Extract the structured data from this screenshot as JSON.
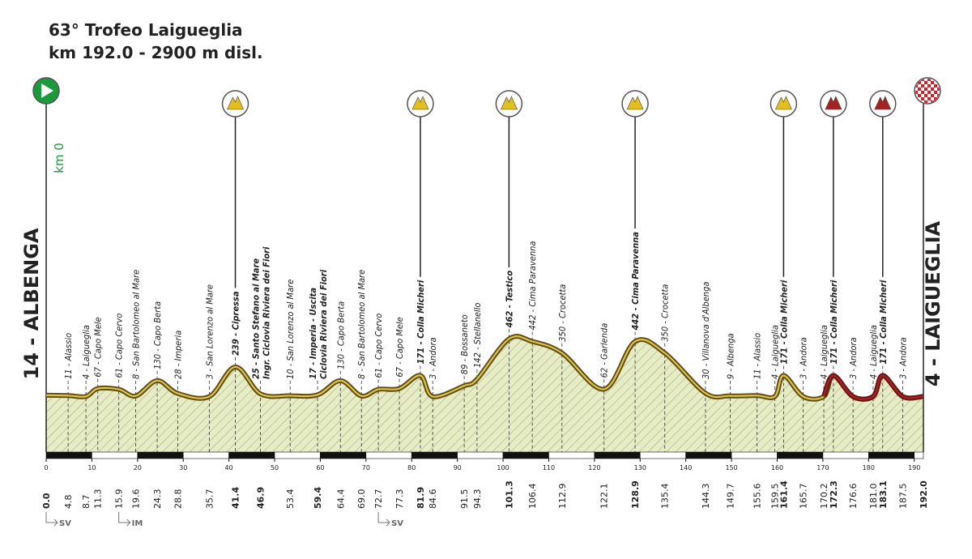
{
  "chart_data": {
    "type": "profile",
    "title": "63° Trofeo Laigueglia",
    "subtitle": "km 192.0 - 2900 m disl.",
    "start": {
      "km": 0,
      "km_label": "0.0",
      "label": "14 - ALBENGA",
      "km_text": "km 0"
    },
    "finish": {
      "km": 192,
      "km_label": "192.0",
      "label": "4 - LAIGUEGLIA"
    },
    "xlim": [
      0,
      192
    ],
    "xticks": [
      0,
      10,
      20,
      30,
      40,
      50,
      60,
      70,
      80,
      90,
      100,
      110,
      120,
      130,
      140,
      150,
      160,
      170,
      180,
      190
    ],
    "waypoints": [
      {
        "km": 4.8,
        "km_label": "4.8",
        "label": "11 - Alassio",
        "bold": false
      },
      {
        "km": 8.7,
        "km_label": "8.7",
        "label": "4 - Laigueglia",
        "bold": false
      },
      {
        "km": 11.3,
        "km_label": "11.3",
        "label": "67 - Capo Mele",
        "bold": false
      },
      {
        "km": 15.9,
        "km_label": "15.9",
        "label": "61 - Capo Cervo",
        "bold": false
      },
      {
        "km": 19.6,
        "km_label": "19.6",
        "label": "8 - San Bartolomeo al Mare",
        "bold": false
      },
      {
        "km": 24.3,
        "km_label": "24.3",
        "label": "130 - Capo Berta",
        "bold": false
      },
      {
        "km": 28.8,
        "km_label": "28.8",
        "label": "28 - Imperia",
        "bold": false
      },
      {
        "km": 35.7,
        "km_label": "35.7",
        "label": "3 - San Lorenzo al Mare",
        "bold": false
      },
      {
        "km": 41.4,
        "km_label": "41.4",
        "label": "239 - Cipressa",
        "bold": true
      },
      {
        "km": 46.9,
        "km_label": "46.9",
        "label": "25 - Santo Stefano al Mare",
        "label2": "Ingr. Ciclovia Riviera dei Fiori",
        "bold": true
      },
      {
        "km": 53.4,
        "km_label": "53.4",
        "label": "10 - San Lorenzo al Mare",
        "bold": false
      },
      {
        "km": 59.4,
        "km_label": "59.4",
        "label": "17 - Imperia - Uscita",
        "label2": "Ciclovia Riviera dei Fiori",
        "bold": true
      },
      {
        "km": 64.4,
        "km_label": "64.4",
        "label": "130 - Capo Berta",
        "bold": false
      },
      {
        "km": 69.0,
        "km_label": "69.0",
        "label": "8 - San Bartolomeo al Mare",
        "bold": false
      },
      {
        "km": 72.7,
        "km_label": "72.7",
        "label": "61 - Capo Cervo",
        "bold": false
      },
      {
        "km": 77.3,
        "km_label": "77.3",
        "label": "67 - Capo Mele",
        "bold": false
      },
      {
        "km": 81.9,
        "km_label": "81.9",
        "label": "171 - Colla Micheri",
        "bold": true
      },
      {
        "km": 84.6,
        "km_label": "84.6",
        "label": "3 - Andora",
        "bold": false
      },
      {
        "km": 91.5,
        "km_label": "91.5",
        "label": "89 - Bossaneto",
        "bold": false
      },
      {
        "km": 94.3,
        "km_label": "94.3",
        "label": "142 - Stellanello",
        "bold": false
      },
      {
        "km": 101.3,
        "km_label": "101.3",
        "label": "462 - Testico",
        "bold": true
      },
      {
        "km": 106.4,
        "km_label": "106.4",
        "label": "442 - Cima Paravenna",
        "bold": false
      },
      {
        "km": 112.9,
        "km_label": "112.9",
        "label": "350 - Crocetta",
        "bold": false
      },
      {
        "km": 122.1,
        "km_label": "122.1",
        "label": "62 - Garlenda",
        "bold": false
      },
      {
        "km": 128.9,
        "km_label": "128.9",
        "label": "442 - Cima Paravenna",
        "bold": true
      },
      {
        "km": 135.4,
        "km_label": "135.4",
        "label": "350 - Crocetta",
        "bold": false
      },
      {
        "km": 144.3,
        "km_label": "144.3",
        "label": "30 - Villanova d'Albenga",
        "bold": false
      },
      {
        "km": 149.7,
        "km_label": "149.7",
        "label": "9 - Albenga",
        "bold": false
      },
      {
        "km": 155.6,
        "km_label": "155.6",
        "label": "11 - Alassio",
        "bold": false
      },
      {
        "km": 159.5,
        "km_label": "159.5",
        "label": "4 - Laigueglia",
        "bold": false
      },
      {
        "km": 161.4,
        "km_label": "161.4",
        "label": "171 - Colla Micheri",
        "bold": true
      },
      {
        "km": 165.7,
        "km_label": "165.7",
        "label": "3 - Andora",
        "bold": false
      },
      {
        "km": 170.2,
        "km_label": "170.2",
        "label": "4 - Laigueglia",
        "bold": false
      },
      {
        "km": 172.3,
        "km_label": "172.3",
        "label": "171 - Colla Micheri",
        "bold": true
      },
      {
        "km": 176.6,
        "km_label": "176.6",
        "label": "3 - Andora",
        "bold": false
      },
      {
        "km": 181.0,
        "km_label": "181.0",
        "label": "4 - Laigueglia",
        "bold": false
      },
      {
        "km": 183.1,
        "km_label": "183.1",
        "label": "171 - Colla Micheri",
        "bold": true
      },
      {
        "km": 187.5,
        "km_label": "187.5",
        "label": "3 - Andora",
        "bold": false
      }
    ],
    "climbs": [
      {
        "km": 41.4,
        "color": "#e3bf1c"
      },
      {
        "km": 81.9,
        "color": "#e3bf1c"
      },
      {
        "km": 101.3,
        "color": "#e3bf1c"
      },
      {
        "km": 128.9,
        "color": "#e3bf1c"
      },
      {
        "km": 161.4,
        "color": "#e3bf1c"
      },
      {
        "km": 172.3,
        "color": "#a52222"
      },
      {
        "km": 183.1,
        "color": "#a52222"
      }
    ],
    "exits": [
      {
        "km": 0,
        "label": "SV"
      },
      {
        "km": 15.9,
        "label": "IM"
      },
      {
        "km": 72.7,
        "label": "SV"
      }
    ],
    "final_circuit_from": 170.2,
    "profile": {
      "x": [
        0,
        4.8,
        8.7,
        11.3,
        15.9,
        19.6,
        24.3,
        28.8,
        35.7,
        41.4,
        46.9,
        53.4,
        59.4,
        64.4,
        69.0,
        72.7,
        77.3,
        81.9,
        84.6,
        91.5,
        94.3,
        101.3,
        106.4,
        112.9,
        122.1,
        128.9,
        135.4,
        144.3,
        149.7,
        155.6,
        159.5,
        161.4,
        165.7,
        170.2,
        172.3,
        176.6,
        181.0,
        183.1,
        187.5,
        192.0
      ],
      "values": [
        14,
        11,
        4,
        67,
        61,
        8,
        130,
        28,
        3,
        239,
        25,
        10,
        17,
        130,
        8,
        61,
        67,
        171,
        3,
        89,
        142,
        462,
        442,
        350,
        62,
        442,
        350,
        30,
        9,
        11,
        4,
        171,
        3,
        4,
        171,
        3,
        4,
        171,
        3,
        4
      ],
      "fill": "#e6ecc3",
      "line_color": "#5e4b12",
      "line_inner": "#dcc24a",
      "final_color": "#6b1414"
    }
  }
}
